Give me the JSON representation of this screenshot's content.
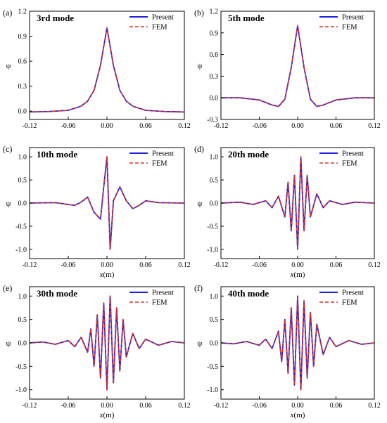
{
  "legend": {
    "present": "Present",
    "fem": "FEM"
  },
  "colors": {
    "present": "#1f1fe6",
    "fem": "#e0301e",
    "axis": "#000000"
  },
  "chart_data": [
    {
      "type": "line",
      "panel_label": "(a)",
      "title": "3rd mode",
      "xlabel": "x(m)",
      "ylabel": "ψ",
      "xlim": [
        -0.12,
        0.12
      ],
      "ylim": [
        -0.1,
        1.2
      ],
      "xticks": [
        "-0.12",
        "-0.06",
        "0.00",
        "0.06",
        "0.12"
      ],
      "yticks": [
        "0.0",
        "0.3",
        "0.6",
        "0.9",
        "1.2"
      ],
      "show_xlabel": false,
      "x": [
        -0.12,
        -0.09,
        -0.06,
        -0.04,
        -0.03,
        -0.02,
        -0.01,
        0.0,
        0.01,
        0.02,
        0.03,
        0.04,
        0.06,
        0.09,
        0.12
      ],
      "series": [
        {
          "name": "Present",
          "values": [
            -0.01,
            -0.005,
            0.01,
            0.06,
            0.12,
            0.25,
            0.55,
            1.0,
            0.55,
            0.25,
            0.12,
            0.06,
            0.01,
            -0.005,
            -0.01
          ]
        },
        {
          "name": "FEM",
          "values": [
            -0.01,
            -0.005,
            0.01,
            0.06,
            0.12,
            0.25,
            0.55,
            1.0,
            0.55,
            0.25,
            0.12,
            0.06,
            0.01,
            -0.005,
            -0.01
          ]
        }
      ],
      "legend_position": "top-right"
    },
    {
      "type": "line",
      "panel_label": "(b)",
      "title": "5th mode",
      "xlabel": "x(m)",
      "ylabel": "ψ",
      "xlim": [
        -0.12,
        0.12
      ],
      "ylim": [
        -0.3,
        1.2
      ],
      "xticks": [
        "-0.12",
        "-0.06",
        "0.00",
        "0.06",
        "0.12"
      ],
      "yticks": [
        "-0.3",
        "0.0",
        "0.3",
        "0.6",
        "0.9",
        "1.2"
      ],
      "show_xlabel": false,
      "x": [
        -0.12,
        -0.09,
        -0.06,
        -0.04,
        -0.03,
        -0.02,
        -0.01,
        0.0,
        0.01,
        0.02,
        0.03,
        0.04,
        0.06,
        0.09,
        0.12
      ],
      "series": [
        {
          "name": "Present",
          "values": [
            0.0,
            0.0,
            -0.03,
            -0.1,
            -0.12,
            -0.02,
            0.42,
            1.0,
            0.42,
            -0.02,
            -0.12,
            -0.1,
            -0.03,
            0.0,
            0.0
          ]
        },
        {
          "name": "FEM",
          "values": [
            0.0,
            0.0,
            -0.03,
            -0.1,
            -0.12,
            -0.02,
            0.42,
            1.0,
            0.42,
            -0.02,
            -0.12,
            -0.1,
            -0.03,
            0.0,
            0.0
          ]
        }
      ],
      "legend_position": "top-right"
    },
    {
      "type": "line",
      "panel_label": "(c)",
      "title": "10th mode",
      "xlabel": "x(m)",
      "ylabel": "ψ",
      "xlim": [
        -0.12,
        0.12
      ],
      "ylim": [
        -1.2,
        1.2
      ],
      "xticks": [
        "-0.12",
        "-0.06",
        "0.00",
        "0.06",
        "0.12"
      ],
      "yticks": [
        "-1.0",
        "-0.5",
        "0.0",
        "0.5",
        "1.0"
      ],
      "show_xlabel": true,
      "x": [
        -0.12,
        -0.08,
        -0.06,
        -0.05,
        -0.04,
        -0.03,
        -0.02,
        -0.01,
        -0.005,
        0.0,
        0.005,
        0.01,
        0.02,
        0.03,
        0.04,
        0.05,
        0.06,
        0.08,
        0.12
      ],
      "series": [
        {
          "name": "Present",
          "values": [
            0.0,
            0.01,
            -0.03,
            -0.05,
            0.02,
            0.13,
            -0.2,
            -0.35,
            0.35,
            1.0,
            -1.0,
            0.05,
            0.35,
            0.05,
            -0.12,
            -0.05,
            0.05,
            0.01,
            0.0
          ]
        },
        {
          "name": "FEM",
          "values": [
            0.0,
            0.01,
            -0.03,
            -0.05,
            0.02,
            0.13,
            -0.2,
            -0.35,
            0.35,
            1.0,
            -1.0,
            0.05,
            0.35,
            0.05,
            -0.12,
            -0.05,
            0.05,
            0.01,
            0.0
          ]
        }
      ],
      "legend_position": "top-right"
    },
    {
      "type": "line",
      "panel_label": "(d)",
      "title": "20th mode",
      "xlabel": "x(m)",
      "ylabel": "ψ",
      "xlim": [
        -0.12,
        0.12
      ],
      "ylim": [
        -1.2,
        1.2
      ],
      "xticks": [
        "-0.12",
        "-0.06",
        "0.00",
        "0.06",
        "0.12"
      ],
      "yticks": [
        "-1.0",
        "-0.5",
        "0.0",
        "0.5",
        "1.0"
      ],
      "show_xlabel": true,
      "x": [
        -0.12,
        -0.09,
        -0.07,
        -0.05,
        -0.04,
        -0.03,
        -0.02,
        -0.015,
        -0.01,
        -0.005,
        0.0,
        0.005,
        0.01,
        0.015,
        0.02,
        0.03,
        0.04,
        0.05,
        0.07,
        0.09,
        0.12
      ],
      "series": [
        {
          "name": "Present",
          "values": [
            0.0,
            0.02,
            -0.03,
            0.05,
            -0.1,
            0.15,
            -0.3,
            0.45,
            -0.6,
            0.6,
            -1.0,
            1.0,
            -0.6,
            0.6,
            -0.3,
            0.2,
            -0.1,
            0.05,
            -0.03,
            0.02,
            0.0
          ]
        },
        {
          "name": "FEM",
          "values": [
            0.0,
            0.02,
            -0.03,
            0.05,
            -0.1,
            0.15,
            -0.3,
            0.45,
            -0.6,
            0.6,
            -1.0,
            1.0,
            -0.6,
            0.6,
            -0.3,
            0.2,
            -0.1,
            0.05,
            -0.03,
            0.02,
            0.0
          ]
        }
      ],
      "legend_position": "top-right"
    },
    {
      "type": "line",
      "panel_label": "(e)",
      "title": "30th mode",
      "xlabel": "x(m)",
      "ylabel": "ψ",
      "xlim": [
        -0.12,
        0.12
      ],
      "ylim": [
        -1.2,
        1.2
      ],
      "xticks": [
        "-0.12",
        "-0.06",
        "0.00",
        "0.06",
        "0.12"
      ],
      "yticks": [
        "-1.0",
        "-0.5",
        "0.0",
        "0.5",
        "1.0"
      ],
      "show_xlabel": true,
      "x": [
        -0.12,
        -0.1,
        -0.08,
        -0.06,
        -0.05,
        -0.04,
        -0.03,
        -0.025,
        -0.02,
        -0.015,
        -0.01,
        -0.005,
        0.0,
        0.005,
        0.01,
        0.015,
        0.02,
        0.025,
        0.03,
        0.04,
        0.05,
        0.06,
        0.08,
        0.1,
        0.12
      ],
      "series": [
        {
          "name": "Present",
          "values": [
            0.0,
            0.02,
            -0.03,
            0.05,
            -0.08,
            0.12,
            -0.2,
            0.3,
            -0.5,
            0.6,
            -0.75,
            0.85,
            -1.0,
            1.0,
            -0.85,
            0.75,
            -0.6,
            0.5,
            -0.3,
            0.2,
            -0.12,
            0.08,
            -0.05,
            0.03,
            0.0
          ]
        },
        {
          "name": "FEM",
          "values": [
            0.0,
            0.02,
            -0.03,
            0.05,
            -0.08,
            0.12,
            -0.2,
            0.3,
            -0.5,
            0.6,
            -0.75,
            0.85,
            -1.0,
            1.0,
            -0.85,
            0.75,
            -0.6,
            0.5,
            -0.3,
            0.2,
            -0.12,
            0.08,
            -0.05,
            0.03,
            0.0
          ]
        }
      ],
      "legend_position": "top-right"
    },
    {
      "type": "line",
      "panel_label": "(f)",
      "title": "40th mode",
      "xlabel": "x(m)",
      "ylabel": "ψ",
      "xlim": [
        -0.12,
        0.12
      ],
      "ylim": [
        -1.2,
        1.2
      ],
      "xticks": [
        "-0.12",
        "-0.06",
        "0.00",
        "0.06",
        "0.12"
      ],
      "yticks": [
        "-1.0",
        "-0.5",
        "0.0",
        "0.5",
        "1.0"
      ],
      "show_xlabel": true,
      "x": [
        -0.12,
        -0.1,
        -0.08,
        -0.06,
        -0.05,
        -0.04,
        -0.03,
        -0.025,
        -0.02,
        -0.015,
        -0.01,
        -0.005,
        0.0,
        0.005,
        0.01,
        0.015,
        0.02,
        0.025,
        0.03,
        0.04,
        0.05,
        0.06,
        0.08,
        0.1,
        0.12
      ],
      "series": [
        {
          "name": "Present",
          "values": [
            0.0,
            -0.02,
            0.03,
            -0.05,
            0.08,
            -0.12,
            0.25,
            -0.4,
            0.5,
            -0.65,
            0.75,
            -0.9,
            1.0,
            -1.0,
            0.9,
            -0.75,
            0.65,
            -0.5,
            0.4,
            -0.25,
            0.12,
            -0.08,
            0.05,
            -0.03,
            0.0
          ]
        },
        {
          "name": "FEM",
          "values": [
            0.0,
            -0.02,
            0.03,
            -0.05,
            0.08,
            -0.12,
            0.25,
            -0.4,
            0.5,
            -0.65,
            0.75,
            -0.9,
            1.0,
            -1.0,
            0.9,
            -0.75,
            0.65,
            -0.5,
            0.4,
            -0.25,
            0.12,
            -0.08,
            0.05,
            -0.03,
            0.0
          ]
        }
      ],
      "legend_position": "top-right"
    }
  ]
}
